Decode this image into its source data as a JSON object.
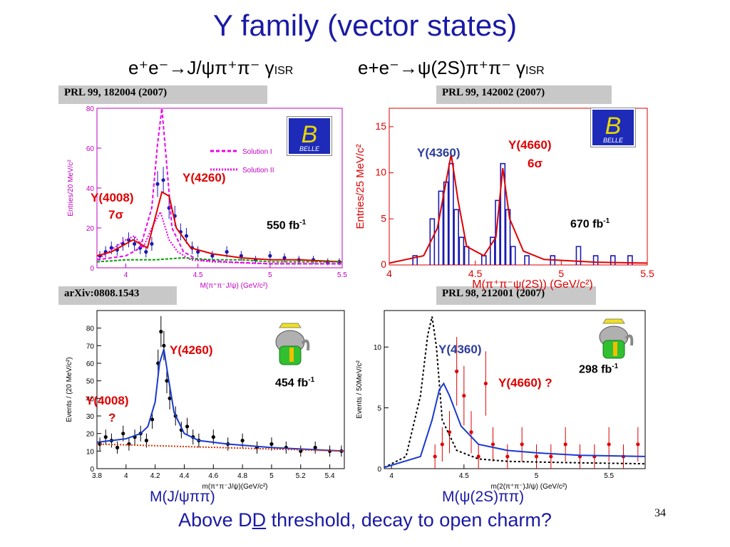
{
  "slide": {
    "title": "Y family  (vector states)",
    "sub_left": "e⁺e⁻→J/ψπ⁺π⁻ γ",
    "sub_left_suffix": "ISR",
    "sub_right": "e+e⁻→ψ(2S)π⁺π⁻ γ",
    "sub_right_suffix": "ISR",
    "bottom_left_label": "M(J/ψππ)",
    "bottom_right_label": "M(ψ(2S)ππ)",
    "bottom_text_a": "Above D",
    "bottom_text_b": "D",
    "bottom_text_c": " threshold,   decay to open charm?",
    "page_number": "34",
    "logo_text": "BELLE"
  },
  "chart_data": [
    {
      "panel": "top-left",
      "type": "scatter",
      "reference": "PRL 99, 182004 (2007)",
      "xlabel": "M(π⁺π⁻J/ψ)  (GeV/c²)",
      "ylabel": "Entries/20 MeV/c²",
      "xlim": [
        3.8,
        5.5
      ],
      "ylim": [
        0,
        80
      ],
      "xticks": [
        "4",
        "4.5",
        "5",
        "5.5"
      ],
      "yticks": [
        "0",
        "20",
        "40",
        "60",
        "80"
      ],
      "legend": [
        "Solution I",
        "Solution II"
      ],
      "legend_position": "top-right",
      "luminosity": "550 fb",
      "lum_exp": "-1",
      "annotations": [
        {
          "text": "Y(4260)",
          "color": "#e00000"
        },
        {
          "text": "Y(4008)",
          "color": "#e00000"
        },
        {
          "text": "7σ",
          "color": "#e00000"
        }
      ],
      "series": [
        {
          "name": "data",
          "color": "#1a1ab0",
          "x": [
            3.82,
            3.86,
            3.9,
            3.94,
            3.98,
            4.02,
            4.06,
            4.1,
            4.14,
            4.18,
            4.22,
            4.26,
            4.3,
            4.34,
            4.38,
            4.42,
            4.46,
            4.5,
            4.6,
            4.7,
            4.8,
            4.9,
            5.0,
            5.1,
            5.2,
            5.3,
            5.4,
            5.48
          ],
          "y": [
            6,
            8,
            10,
            9,
            12,
            14,
            12,
            10,
            8,
            12,
            42,
            44,
            30,
            26,
            18,
            16,
            10,
            8,
            6,
            8,
            6,
            4,
            6,
            5,
            4,
            4,
            3,
            3
          ]
        },
        {
          "name": "Solution I",
          "color": "#ee00ee",
          "x": [
            3.8,
            4.0,
            4.1,
            4.18,
            4.22,
            4.25,
            4.28,
            4.32,
            4.4,
            4.5,
            4.7,
            5.0,
            5.5
          ],
          "y": [
            4,
            6,
            10,
            30,
            62,
            80,
            55,
            20,
            8,
            4,
            3,
            2,
            2
          ]
        },
        {
          "name": "Solution II",
          "color": "#ee00ee",
          "x": [
            3.8,
            4.0,
            4.06,
            4.12,
            4.18,
            4.24,
            4.3,
            4.36,
            4.45,
            4.6,
            5.0,
            5.5
          ],
          "y": [
            4,
            14,
            16,
            10,
            20,
            28,
            14,
            8,
            4,
            3,
            2,
            2
          ]
        },
        {
          "name": "fit",
          "color": "#e00000",
          "x": [
            3.8,
            3.9,
            4.0,
            4.05,
            4.1,
            4.15,
            4.2,
            4.25,
            4.3,
            4.35,
            4.45,
            4.6,
            4.8,
            5.0,
            5.2,
            5.5
          ],
          "y": [
            6,
            8,
            12,
            14,
            12,
            10,
            24,
            38,
            36,
            20,
            10,
            7,
            5,
            4,
            4,
            3
          ]
        },
        {
          "name": "background",
          "color": "#00a000",
          "x": [
            3.8,
            4.0,
            4.2,
            4.4,
            4.6,
            4.8,
            5.0,
            5.2,
            5.4,
            5.5
          ],
          "y": [
            3,
            4,
            4,
            5,
            4,
            4,
            3,
            3,
            3,
            3
          ]
        }
      ]
    },
    {
      "panel": "top-right",
      "type": "bar",
      "reference": "PRL 99, 142002 (2007)",
      "xlabel": "M(π⁺π⁻ψ(2S)) (GeV/c²)",
      "ylabel": "Entries/25 MeV/c²",
      "xlim": [
        4.0,
        5.5
      ],
      "ylim": [
        0,
        17
      ],
      "xticks": [
        "4",
        "4.5",
        "5",
        "5.5"
      ],
      "yticks": [
        "0",
        "5",
        "10",
        "15"
      ],
      "luminosity": "670 fb",
      "lum_exp": "-1",
      "annotations": [
        {
          "text": "Y(4360)",
          "color": "#2b3c9c"
        },
        {
          "text": "Y(4660)",
          "color": "#e00000"
        },
        {
          "text": "6σ",
          "color": "#e00000"
        }
      ],
      "series": [
        {
          "name": "data",
          "color": "#1a1ab0",
          "x": [
            4.15,
            4.25,
            4.3,
            4.33,
            4.36,
            4.39,
            4.42,
            4.45,
            4.55,
            4.6,
            4.63,
            4.66,
            4.69,
            4.72,
            4.8,
            4.95,
            5.1,
            5.2,
            5.3,
            5.4
          ],
          "y": [
            1,
            5,
            8,
            9,
            11,
            6,
            3,
            2,
            1,
            3,
            7,
            11,
            6,
            2,
            1,
            1,
            2,
            1,
            1,
            1
          ]
        },
        {
          "name": "fit",
          "color": "#e00000",
          "x": [
            4.0,
            4.2,
            4.28,
            4.33,
            4.36,
            4.4,
            4.45,
            4.55,
            4.62,
            4.66,
            4.7,
            4.78,
            4.9,
            5.2,
            5.5
          ],
          "y": [
            0.2,
            1,
            4,
            9,
            12,
            7,
            2,
            1,
            3,
            10.5,
            5,
            1.5,
            0.6,
            0.3,
            0.2
          ]
        }
      ]
    },
    {
      "panel": "bottom-left",
      "type": "scatter",
      "reference": "arXiv:0808.1543",
      "xlabel": "m(π⁺π⁻J/ψ)(GeV/c²)",
      "ylabel": "Events / (20 MeV/c²)",
      "xlim": [
        3.8,
        5.5
      ],
      "ylim": [
        0,
        90
      ],
      "xticks": [
        "3.8",
        "4",
        "4.2",
        "4.4",
        "4.6",
        "4.8",
        "5",
        "5.2",
        "5.4"
      ],
      "yticks": [
        "0",
        "10",
        "20",
        "30",
        "40",
        "50",
        "60",
        "70",
        "80"
      ],
      "luminosity": "454 fb",
      "lum_exp": "-1",
      "annotations": [
        {
          "text": "Y(4260)",
          "color": "#e00000"
        },
        {
          "text": "Y(4008)",
          "color": "#e00000"
        },
        {
          "text": "?",
          "color": "#e00000"
        }
      ],
      "series": [
        {
          "name": "data",
          "color": "#000000",
          "x": [
            3.82,
            3.86,
            3.9,
            3.94,
            3.98,
            4.02,
            4.06,
            4.1,
            4.14,
            4.18,
            4.22,
            4.24,
            4.26,
            4.28,
            4.3,
            4.34,
            4.38,
            4.42,
            4.46,
            4.5,
            4.6,
            4.7,
            4.8,
            4.9,
            5.0,
            5.1,
            5.2,
            5.3,
            5.4,
            5.48
          ],
          "y": [
            14,
            18,
            16,
            12,
            20,
            14,
            18,
            20,
            16,
            28,
            60,
            78,
            70,
            50,
            40,
            30,
            22,
            24,
            18,
            16,
            18,
            14,
            16,
            12,
            14,
            12,
            10,
            12,
            10,
            10
          ]
        },
        {
          "name": "fit",
          "color": "#1a3ad0",
          "x": [
            3.8,
            3.9,
            4.0,
            4.1,
            4.15,
            4.2,
            4.23,
            4.26,
            4.29,
            4.33,
            4.4,
            4.5,
            4.7,
            5.0,
            5.5
          ],
          "y": [
            15,
            16,
            17,
            20,
            24,
            38,
            60,
            68,
            52,
            32,
            20,
            16,
            14,
            12,
            10
          ]
        },
        {
          "name": "background",
          "color": "#e03000",
          "x": [
            3.8,
            5.5
          ],
          "y": [
            14,
            10
          ]
        }
      ]
    },
    {
      "panel": "bottom-right",
      "type": "scatter",
      "reference": "PRL 98, 212001 (2007)",
      "xlabel": "m(2(π⁺π⁻)J/ψ)  (GeV/c²)",
      "ylabel": "Events / 50MeV/c²",
      "xlim": [
        3.95,
        5.75
      ],
      "ylim": [
        0,
        13
      ],
      "xticks": [
        "4",
        "4.5",
        "5",
        "5.5"
      ],
      "yticks": [
        "0",
        "5",
        "10"
      ],
      "luminosity": "298 fb",
      "lum_exp": "-1",
      "annotations": [
        {
          "text": "Y(4360)",
          "color": "#2b3c9c"
        },
        {
          "text": "Y(4660) ?",
          "color": "#e00000"
        }
      ],
      "series": [
        {
          "name": "data",
          "color": "#e00000",
          "x": [
            4.3,
            4.35,
            4.4,
            4.45,
            4.5,
            4.55,
            4.6,
            4.65,
            4.7,
            4.8,
            4.9,
            5.0,
            5.1,
            5.2,
            5.3,
            5.4,
            5.5,
            5.6,
            5.7
          ],
          "y": [
            1,
            2,
            3,
            8,
            6,
            3,
            1,
            7,
            2,
            1,
            2,
            1,
            1,
            2,
            1,
            1,
            2,
            1,
            2
          ]
        },
        {
          "name": "Y(4260) dotted",
          "color": "#000000",
          "x": [
            3.95,
            4.1,
            4.2,
            4.25,
            4.28,
            4.31,
            4.35,
            4.45,
            4.6,
            4.8,
            5.2,
            5.75
          ],
          "y": [
            0.1,
            1,
            6,
            11,
            12.5,
            10,
            4,
            1.5,
            0.8,
            0.6,
            0.5,
            0.4
          ]
        },
        {
          "name": "fit",
          "color": "#1a3ad0",
          "x": [
            3.95,
            4.2,
            4.28,
            4.33,
            4.36,
            4.4,
            4.48,
            4.6,
            4.8,
            5.0,
            5.3,
            5.75
          ],
          "y": [
            0.1,
            1,
            4,
            6.5,
            7,
            6,
            3.5,
            2,
            1.5,
            1.3,
            1.1,
            1.0
          ]
        }
      ]
    }
  ]
}
